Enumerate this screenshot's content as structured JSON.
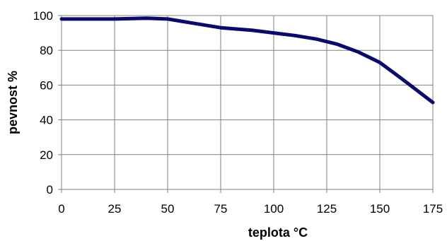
{
  "chart_data": {
    "type": "line",
    "xlabel": "teplota °C",
    "ylabel": "pevnost  %",
    "xlim": [
      0,
      175
    ],
    "ylim": [
      0,
      100
    ],
    "x_ticks": [
      0,
      25,
      50,
      75,
      100,
      125,
      150,
      175
    ],
    "y_ticks": [
      0,
      20,
      40,
      60,
      80,
      100
    ],
    "grid": true,
    "series": [
      {
        "color": "#0a0a6e",
        "x": [
          0,
          25,
          40,
          50,
          60,
          75,
          90,
          100,
          110,
          120,
          130,
          140,
          150,
          160,
          175
        ],
        "y": [
          98,
          98,
          98.5,
          98,
          96,
          93,
          91.5,
          90,
          88.5,
          86.5,
          83.5,
          79,
          73,
          64,
          50
        ]
      }
    ]
  }
}
